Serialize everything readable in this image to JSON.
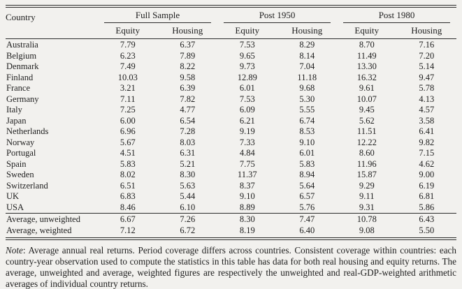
{
  "table": {
    "country_header": "Country",
    "groups": [
      {
        "label": "Full Sample"
      },
      {
        "label": "Post 1950"
      },
      {
        "label": "Post 1980"
      }
    ],
    "subheaders": [
      "Equity",
      "Housing"
    ],
    "rows": [
      {
        "country": "Australia",
        "values": [
          "7.79",
          "6.37",
          "7.53",
          "8.29",
          "8.70",
          "7.16"
        ]
      },
      {
        "country": "Belgium",
        "values": [
          "6.23",
          "7.89",
          "9.65",
          "8.14",
          "11.49",
          "7.20"
        ]
      },
      {
        "country": "Denmark",
        "values": [
          "7.49",
          "8.22",
          "9.73",
          "7.04",
          "13.30",
          "5.14"
        ]
      },
      {
        "country": "Finland",
        "values": [
          "10.03",
          "9.58",
          "12.89",
          "11.18",
          "16.32",
          "9.47"
        ]
      },
      {
        "country": "France",
        "values": [
          "3.21",
          "6.39",
          "6.01",
          "9.68",
          "9.61",
          "5.78"
        ]
      },
      {
        "country": "Germany",
        "values": [
          "7.11",
          "7.82",
          "7.53",
          "5.30",
          "10.07",
          "4.13"
        ]
      },
      {
        "country": "Italy",
        "values": [
          "7.25",
          "4.77",
          "6.09",
          "5.55",
          "9.45",
          "4.57"
        ]
      },
      {
        "country": "Japan",
        "values": [
          "6.00",
          "6.54",
          "6.21",
          "6.74",
          "5.62",
          "3.58"
        ]
      },
      {
        "country": "Netherlands",
        "values": [
          "6.96",
          "7.28",
          "9.19",
          "8.53",
          "11.51",
          "6.41"
        ]
      },
      {
        "country": "Norway",
        "values": [
          "5.67",
          "8.03",
          "7.33",
          "9.10",
          "12.22",
          "9.82"
        ]
      },
      {
        "country": "Portugal",
        "values": [
          "4.51",
          "6.31",
          "4.84",
          "6.01",
          "8.60",
          "7.15"
        ]
      },
      {
        "country": "Spain",
        "values": [
          "5.83",
          "5.21",
          "7.75",
          "5.83",
          "11.96",
          "4.62"
        ]
      },
      {
        "country": "Sweden",
        "values": [
          "8.02",
          "8.30",
          "11.37",
          "8.94",
          "15.87",
          "9.00"
        ]
      },
      {
        "country": "Switzerland",
        "values": [
          "6.51",
          "5.63",
          "8.37",
          "5.64",
          "9.29",
          "6.19"
        ]
      },
      {
        "country": "UK",
        "values": [
          "6.83",
          "5.44",
          "9.10",
          "6.57",
          "9.11",
          "6.81"
        ]
      },
      {
        "country": "USA",
        "values": [
          "8.46",
          "6.10",
          "8.89",
          "5.76",
          "9.31",
          "5.86"
        ]
      }
    ],
    "summary_rows": [
      {
        "country": "Average, unweighted",
        "values": [
          "6.67",
          "7.26",
          "8.30",
          "7.47",
          "10.78",
          "6.43"
        ]
      },
      {
        "country": "Average, weighted",
        "values": [
          "7.12",
          "6.72",
          "8.19",
          "6.40",
          "9.08",
          "5.50"
        ]
      }
    ]
  },
  "note": {
    "label": "Note",
    "text": ": Average annual real returns.  Period coverage differs across countries.  Consistent coverage within countries: each country-year observation used to compute the statistics in this table has data for both real housing and equity returns.  The average, unweighted and average, weighted figures are respectively the unweighted and real-GDP-weighted arithmetic averages of individual country returns."
  },
  "colors": {
    "background": "#f2f1ee",
    "text": "#1e1e1e",
    "rule": "#2b2b2b"
  }
}
